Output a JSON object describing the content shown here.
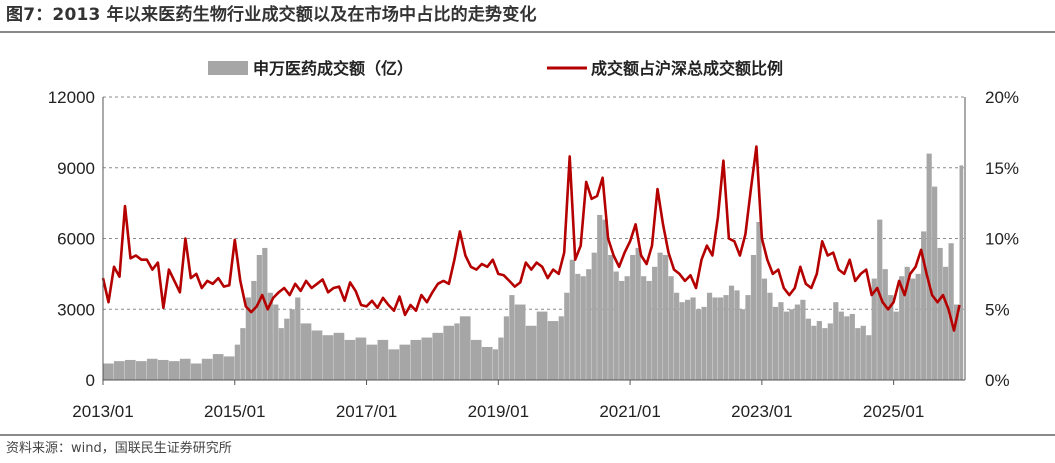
{
  "title": "图7：2013 年以来医药生物行业成交额以及在市场中占比的走势变化",
  "source": "资料来源：wind，国联民生证券研究所",
  "colors": {
    "bars": "#a6a6a6",
    "line": "#b50000",
    "grid": "#8c8c8c"
  },
  "chart_data": {
    "type": "bar+line",
    "legend_position": "top-center",
    "grid": true,
    "x": {
      "range": [
        "2013-01",
        "2026-02"
      ],
      "tick_labels": [
        "2013/01",
        "2015/01",
        "2017/01",
        "2019/01",
        "2021/01",
        "2023/01",
        "2025/01"
      ]
    },
    "y_left": {
      "min": 0,
      "max": 12000,
      "tick_labels": [
        "0",
        "3000",
        "6000",
        "9000",
        "12000"
      ]
    },
    "y_right": {
      "min": 0,
      "max": 20,
      "tick_labels": [
        "0%",
        "5%",
        "10%",
        "15%",
        "20%"
      ]
    },
    "series": [
      {
        "name": "申万医药成交额（亿）",
        "type": "bar",
        "axis": "left",
        "points": [
          [
            "2013-01",
            700
          ],
          [
            "2013-03",
            800
          ],
          [
            "2013-05",
            850
          ],
          [
            "2013-07",
            800
          ],
          [
            "2013-09",
            900
          ],
          [
            "2013-11",
            850
          ],
          [
            "2014-01",
            800
          ],
          [
            "2014-03",
            900
          ],
          [
            "2014-05",
            700
          ],
          [
            "2014-07",
            900
          ],
          [
            "2014-09",
            1100
          ],
          [
            "2014-11",
            1000
          ],
          [
            "2015-01",
            1500
          ],
          [
            "2015-02",
            2200
          ],
          [
            "2015-03",
            3500
          ],
          [
            "2015-04",
            4200
          ],
          [
            "2015-05",
            5300
          ],
          [
            "2015-06",
            5600
          ],
          [
            "2015-07",
            3700
          ],
          [
            "2015-08",
            3200
          ],
          [
            "2015-09",
            2200
          ],
          [
            "2015-10",
            2600
          ],
          [
            "2015-11",
            3000
          ],
          [
            "2015-12",
            3500
          ],
          [
            "2016-01",
            2400
          ],
          [
            "2016-03",
            2100
          ],
          [
            "2016-05",
            1900
          ],
          [
            "2016-07",
            2000
          ],
          [
            "2016-09",
            1700
          ],
          [
            "2016-11",
            1800
          ],
          [
            "2017-01",
            1500
          ],
          [
            "2017-03",
            1700
          ],
          [
            "2017-05",
            1300
          ],
          [
            "2017-07",
            1500
          ],
          [
            "2017-09",
            1700
          ],
          [
            "2017-11",
            1800
          ],
          [
            "2018-01",
            2000
          ],
          [
            "2018-03",
            2300
          ],
          [
            "2018-05",
            2400
          ],
          [
            "2018-06",
            2700
          ],
          [
            "2018-08",
            1700
          ],
          [
            "2018-10",
            1400
          ],
          [
            "2018-12",
            1300
          ],
          [
            "2019-01",
            1800
          ],
          [
            "2019-02",
            2700
          ],
          [
            "2019-03",
            3600
          ],
          [
            "2019-04",
            3200
          ],
          [
            "2019-06",
            2300
          ],
          [
            "2019-08",
            2900
          ],
          [
            "2019-10",
            2500
          ],
          [
            "2019-12",
            2700
          ],
          [
            "2020-01",
            3700
          ],
          [
            "2020-02",
            5100
          ],
          [
            "2020-03",
            4500
          ],
          [
            "2020-04",
            4400
          ],
          [
            "2020-05",
            4700
          ],
          [
            "2020-06",
            5400
          ],
          [
            "2020-07",
            7000
          ],
          [
            "2020-08",
            6800
          ],
          [
            "2020-09",
            5300
          ],
          [
            "2020-10",
            4600
          ],
          [
            "2020-11",
            4200
          ],
          [
            "2020-12",
            4400
          ],
          [
            "2021-01",
            5300
          ],
          [
            "2021-02",
            5600
          ],
          [
            "2021-03",
            4400
          ],
          [
            "2021-04",
            4200
          ],
          [
            "2021-05",
            4800
          ],
          [
            "2021-06",
            5400
          ],
          [
            "2021-07",
            5300
          ],
          [
            "2021-08",
            4400
          ],
          [
            "2021-09",
            3700
          ],
          [
            "2021-10",
            3300
          ],
          [
            "2021-11",
            3400
          ],
          [
            "2021-12",
            3500
          ],
          [
            "2022-01",
            3000
          ],
          [
            "2022-02",
            3100
          ],
          [
            "2022-03",
            3700
          ],
          [
            "2022-04",
            3500
          ],
          [
            "2022-05",
            3500
          ],
          [
            "2022-06",
            3600
          ],
          [
            "2022-07",
            4000
          ],
          [
            "2022-08",
            3800
          ],
          [
            "2022-09",
            3000
          ],
          [
            "2022-10",
            3600
          ],
          [
            "2022-11",
            5300
          ],
          [
            "2022-12",
            6700
          ],
          [
            "2023-01",
            4300
          ],
          [
            "2023-02",
            3700
          ],
          [
            "2023-03",
            3100
          ],
          [
            "2023-04",
            3300
          ],
          [
            "2023-05",
            2900
          ],
          [
            "2023-06",
            3000
          ],
          [
            "2023-07",
            3200
          ],
          [
            "2023-08",
            3400
          ],
          [
            "2023-09",
            2600
          ],
          [
            "2023-10",
            2300
          ],
          [
            "2023-11",
            2500
          ],
          [
            "2023-12",
            2200
          ],
          [
            "2024-01",
            2400
          ],
          [
            "2024-02",
            3300
          ],
          [
            "2024-03",
            2900
          ],
          [
            "2024-04",
            2700
          ],
          [
            "2024-05",
            2800
          ],
          [
            "2024-06",
            2200
          ],
          [
            "2024-07",
            2300
          ],
          [
            "2024-08",
            1900
          ],
          [
            "2024-09",
            4300
          ],
          [
            "2024-10",
            6800
          ],
          [
            "2024-11",
            4700
          ],
          [
            "2024-12",
            3600
          ],
          [
            "2025-01",
            2900
          ],
          [
            "2025-02",
            4400
          ],
          [
            "2025-03",
            4800
          ],
          [
            "2025-04",
            4300
          ],
          [
            "2025-05",
            4500
          ],
          [
            "2025-06",
            6300
          ],
          [
            "2025-07",
            9600
          ],
          [
            "2025-08",
            8200
          ],
          [
            "2025-09",
            5600
          ],
          [
            "2025-10",
            4800
          ],
          [
            "2025-11",
            5800
          ],
          [
            "2025-12",
            3200
          ],
          [
            "2026-01",
            9100
          ]
        ]
      },
      {
        "name": "成交额占沪深总成交额比例",
        "type": "line",
        "axis": "right",
        "points": [
          [
            "2013-01",
            7.2
          ],
          [
            "2013-02",
            5.5
          ],
          [
            "2013-03",
            8.0
          ],
          [
            "2013-04",
            7.3
          ],
          [
            "2013-05",
            12.3
          ],
          [
            "2013-06",
            8.6
          ],
          [
            "2013-07",
            8.8
          ],
          [
            "2013-08",
            8.5
          ],
          [
            "2013-09",
            8.5
          ],
          [
            "2013-10",
            7.8
          ],
          [
            "2013-11",
            8.3
          ],
          [
            "2013-12",
            5.1
          ],
          [
            "2014-01",
            7.8
          ],
          [
            "2014-02",
            7.0
          ],
          [
            "2014-03",
            6.2
          ],
          [
            "2014-04",
            10.0
          ],
          [
            "2014-05",
            7.2
          ],
          [
            "2014-06",
            7.5
          ],
          [
            "2014-07",
            6.5
          ],
          [
            "2014-08",
            7.0
          ],
          [
            "2014-09",
            6.8
          ],
          [
            "2014-10",
            7.2
          ],
          [
            "2014-11",
            6.6
          ],
          [
            "2014-12",
            6.7
          ],
          [
            "2015-01",
            9.9
          ],
          [
            "2015-02",
            7.0
          ],
          [
            "2015-03",
            5.2
          ],
          [
            "2015-04",
            4.8
          ],
          [
            "2015-05",
            5.2
          ],
          [
            "2015-06",
            6.0
          ],
          [
            "2015-07",
            5.0
          ],
          [
            "2015-08",
            5.8
          ],
          [
            "2015-09",
            6.2
          ],
          [
            "2015-10",
            6.5
          ],
          [
            "2015-11",
            6.0
          ],
          [
            "2015-12",
            6.8
          ],
          [
            "2016-01",
            6.3
          ],
          [
            "2016-02",
            7.0
          ],
          [
            "2016-03",
            6.5
          ],
          [
            "2016-04",
            6.8
          ],
          [
            "2016-05",
            7.1
          ],
          [
            "2016-06",
            6.2
          ],
          [
            "2016-07",
            6.5
          ],
          [
            "2016-08",
            6.6
          ],
          [
            "2016-09",
            5.6
          ],
          [
            "2016-10",
            6.9
          ],
          [
            "2016-11",
            6.3
          ],
          [
            "2016-12",
            5.3
          ],
          [
            "2017-01",
            5.2
          ],
          [
            "2017-02",
            5.6
          ],
          [
            "2017-03",
            5.1
          ],
          [
            "2017-04",
            5.8
          ],
          [
            "2017-05",
            5.3
          ],
          [
            "2017-06",
            4.9
          ],
          [
            "2017-07",
            5.9
          ],
          [
            "2017-08",
            4.6
          ],
          [
            "2017-09",
            5.3
          ],
          [
            "2017-10",
            4.9
          ],
          [
            "2017-11",
            6.0
          ],
          [
            "2017-12",
            5.5
          ],
          [
            "2018-01",
            6.2
          ],
          [
            "2018-02",
            6.8
          ],
          [
            "2018-03",
            7.0
          ],
          [
            "2018-04",
            6.8
          ],
          [
            "2018-05",
            8.5
          ],
          [
            "2018-06",
            10.5
          ],
          [
            "2018-07",
            8.8
          ],
          [
            "2018-08",
            8.0
          ],
          [
            "2018-09",
            7.8
          ],
          [
            "2018-10",
            8.2
          ],
          [
            "2018-11",
            8.0
          ],
          [
            "2018-12",
            8.5
          ],
          [
            "2019-01",
            7.5
          ],
          [
            "2019-02",
            7.4
          ],
          [
            "2019-03",
            7.0
          ],
          [
            "2019-04",
            6.6
          ],
          [
            "2019-05",
            6.9
          ],
          [
            "2019-06",
            8.3
          ],
          [
            "2019-07",
            7.8
          ],
          [
            "2019-08",
            8.3
          ],
          [
            "2019-09",
            8.0
          ],
          [
            "2019-10",
            7.2
          ],
          [
            "2019-11",
            7.8
          ],
          [
            "2019-12",
            7.5
          ],
          [
            "2020-01",
            9.0
          ],
          [
            "2020-02",
            15.8
          ],
          [
            "2020-03",
            8.5
          ],
          [
            "2020-04",
            9.5
          ],
          [
            "2020-05",
            14.0
          ],
          [
            "2020-06",
            12.8
          ],
          [
            "2020-07",
            13.0
          ],
          [
            "2020-08",
            14.3
          ],
          [
            "2020-09",
            10.0
          ],
          [
            "2020-10",
            8.8
          ],
          [
            "2020-11",
            8.0
          ],
          [
            "2020-12",
            9.0
          ],
          [
            "2021-01",
            9.8
          ],
          [
            "2021-02",
            11.0
          ],
          [
            "2021-03",
            8.8
          ],
          [
            "2021-04",
            8.2
          ],
          [
            "2021-05",
            9.5
          ],
          [
            "2021-06",
            13.5
          ],
          [
            "2021-07",
            11.0
          ],
          [
            "2021-08",
            9.0
          ],
          [
            "2021-09",
            7.8
          ],
          [
            "2021-10",
            7.5
          ],
          [
            "2021-11",
            7.0
          ],
          [
            "2021-12",
            7.4
          ],
          [
            "2022-01",
            6.5
          ],
          [
            "2022-02",
            8.5
          ],
          [
            "2022-03",
            9.5
          ],
          [
            "2022-04",
            8.8
          ],
          [
            "2022-05",
            11.5
          ],
          [
            "2022-06",
            15.5
          ],
          [
            "2022-07",
            10.0
          ],
          [
            "2022-08",
            9.8
          ],
          [
            "2022-09",
            8.8
          ],
          [
            "2022-10",
            10.3
          ],
          [
            "2022-11",
            13.5
          ],
          [
            "2022-12",
            16.5
          ],
          [
            "2023-01",
            10.0
          ],
          [
            "2023-02",
            8.5
          ],
          [
            "2023-03",
            7.5
          ],
          [
            "2023-04",
            7.8
          ],
          [
            "2023-05",
            6.5
          ],
          [
            "2023-06",
            6.0
          ],
          [
            "2023-07",
            6.5
          ],
          [
            "2023-08",
            8.0
          ],
          [
            "2023-09",
            6.8
          ],
          [
            "2023-10",
            6.5
          ],
          [
            "2023-11",
            7.5
          ],
          [
            "2023-12",
            9.8
          ],
          [
            "2024-01",
            8.8
          ],
          [
            "2024-02",
            9.0
          ],
          [
            "2024-03",
            7.8
          ],
          [
            "2024-04",
            7.5
          ],
          [
            "2024-05",
            8.5
          ],
          [
            "2024-06",
            7.0
          ],
          [
            "2024-07",
            7.5
          ],
          [
            "2024-08",
            7.8
          ],
          [
            "2024-09",
            6.0
          ],
          [
            "2024-10",
            6.5
          ],
          [
            "2024-11",
            5.5
          ],
          [
            "2024-12",
            5.0
          ],
          [
            "2025-01",
            5.5
          ],
          [
            "2025-02",
            7.0
          ],
          [
            "2025-03",
            6.0
          ],
          [
            "2025-04",
            7.5
          ],
          [
            "2025-05",
            8.0
          ],
          [
            "2025-06",
            9.2
          ],
          [
            "2025-07",
            7.5
          ],
          [
            "2025-08",
            6.0
          ],
          [
            "2025-09",
            5.5
          ],
          [
            "2025-10",
            6.0
          ],
          [
            "2025-11",
            5.0
          ],
          [
            "2025-12",
            3.5
          ],
          [
            "2026-01",
            5.3
          ]
        ]
      }
    ]
  }
}
